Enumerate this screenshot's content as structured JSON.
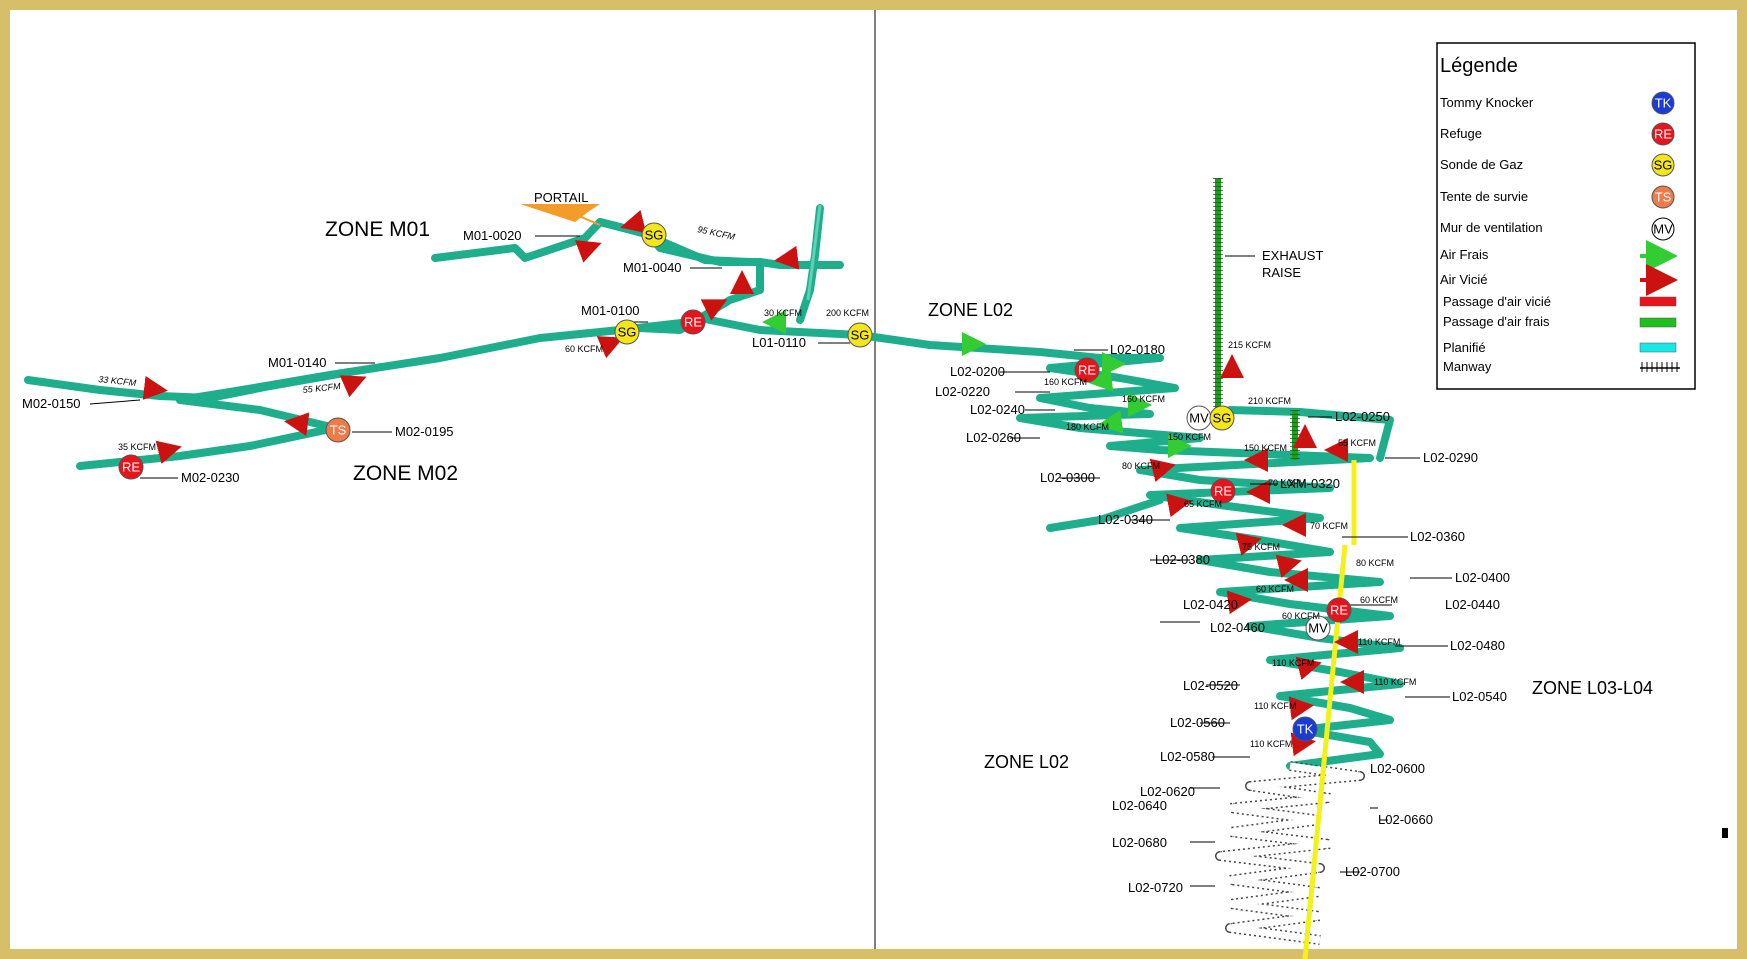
{
  "colors": {
    "frame": "#d7bf6a",
    "drift": "#1fae8c",
    "fresh_air_arrow": "#33cc33",
    "stale_air_arrow": "#cc1111",
    "stale_passage": "#e8141b",
    "fresh_passage": "#1fbf1f",
    "planned": "#19e6e6",
    "exhaust_raise": "#1ea01e",
    "manway_line": "#f2f21a",
    "portal": "#f39c2a"
  },
  "legend": {
    "title": "Légende",
    "items": [
      {
        "label": "Tommy Knocker",
        "symbol": "TK",
        "color": "#1a3bd6",
        "text_color": "#ffffff"
      },
      {
        "label": "Refuge",
        "symbol": "RE",
        "color": "#e8141b",
        "text_color": "#ffffff"
      },
      {
        "label": "Sonde de Gaz",
        "symbol": "SG",
        "color": "#f5e61a",
        "text_color": "#000000"
      },
      {
        "label": "Tente de survie",
        "symbol": "TS",
        "color": "#f07b4a",
        "text_color": "#ffffff"
      },
      {
        "label": "Mur de ventilation",
        "symbol": "MV",
        "color": "#ffffff",
        "text_color": "#000000"
      },
      {
        "label": "Air Frais",
        "icon": "green-arrow-icon"
      },
      {
        "label": "Air Vicié",
        "icon": "red-arrow-icon"
      },
      {
        "label": "Passage d'air vicié",
        "icon": "red-bar-icon"
      },
      {
        "label": "Passage d'air frais",
        "icon": "green-bar-icon"
      },
      {
        "label": "Planifié",
        "icon": "cyan-bar-icon"
      },
      {
        "label": "Manway",
        "icon": "manway-hatch-icon"
      }
    ]
  },
  "zones": {
    "m01": "ZONE M01",
    "m02": "ZONE M02",
    "l02_top": "ZONE L02",
    "l02_bottom": "ZONE L02",
    "l03_l04": "ZONE L03-L04"
  },
  "labels": {
    "portail": "PORTAIL",
    "exhaust_1": "EXHAUST",
    "exhaust_2": "RAISE",
    "m01_0020": "M01-0020",
    "m01_0040": "M01-0040",
    "m01_0100": "M01-0100",
    "m01_0140": "M01-0140",
    "l01_0110": "L01-0110",
    "m02_0150": "M02-0150",
    "m02_0195": "M02-0195",
    "m02_0230": "M02-0230",
    "l02_0180": "L02-0180",
    "l02_0200": "L02-0200",
    "l02_0220": "L02-0220",
    "l02_0240": "L02-0240",
    "l02_0250": "L02-0250",
    "l02_0260": "L02-0260",
    "l02_0290": "L02-0290",
    "l02_0300": "L02-0300",
    "lxm_0320": "LXM-0320",
    "l02_0340": "L02-0340",
    "l02_0360": "L02-0360",
    "l02_0380": "L02-0380",
    "l02_0400": "L02-0400",
    "l02_0420": "L02-0420",
    "l02_0440": "L02-0440",
    "l02_0460": "L02-0460",
    "l02_0480": "L02-0480",
    "l02_0520": "L02-0520",
    "l02_0540": "L02-0540",
    "l02_0560": "L02-0560",
    "l02_0580": "L02-0580",
    "l02_0600": "L02-0600",
    "l02_0620": "L02-0620",
    "l02_0640": "L02-0640",
    "l02_0660": "L02-0660",
    "l02_0680": "L02-0680",
    "l02_0700": "L02-0700",
    "l02_0720": "L02-0720"
  },
  "airflow": {
    "k95": "95 KCFM",
    "k30": "30 KCFM",
    "k200": "200 KCFM",
    "k60a": "60 KCFM",
    "k33": "33 KCFM",
    "k55a": "55 KCFM",
    "k35": "35 KCFM",
    "k215": "215 KCFM",
    "k160a": "160 KCFM",
    "k160b": "160 KCFM",
    "k180": "180 KCFM",
    "k150a": "150 KCFM",
    "k210": "210 KCFM",
    "k150b": "150 KCFM",
    "k55b": "55 KCFM",
    "k80a": "80 KCFM",
    "k70a": "70 KCFM",
    "k65": "65 KCFM",
    "k70b": "70 KCFM",
    "k75": "75 KCFM",
    "k80b": "80 KCFM",
    "k60b": "60 KCFM",
    "k60c": "60 KCFM",
    "k60d": "60 KCFM",
    "k110a": "110 KCFM",
    "k110b": "110 KCFM",
    "k110c": "110 KCFM",
    "k110d": "110 KCFM",
    "k110e": "110 KCFM"
  },
  "symbols": {
    "sg": "SG",
    "re": "RE",
    "ts": "TS",
    "mv": "MV",
    "tk": "TK"
  }
}
